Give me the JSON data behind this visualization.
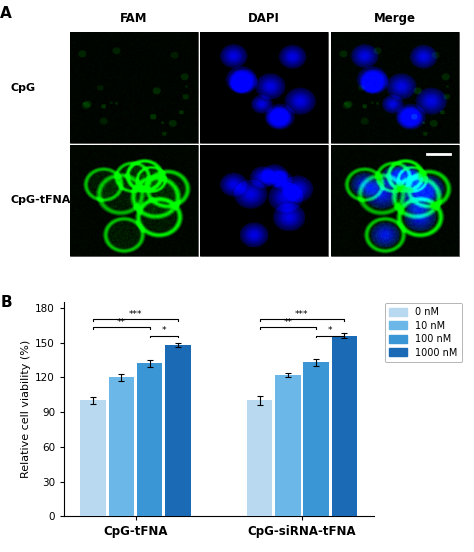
{
  "panel_A_label": "A",
  "panel_B_label": "B",
  "microscopy_rows": [
    "CpG",
    "CpG-tFNA"
  ],
  "microscopy_cols": [
    "FAM",
    "DAPI",
    "Merge"
  ],
  "bar_groups": [
    "CpG-tFNA",
    "CpG-siRNA-tFNA"
  ],
  "bar_labels": [
    "0 nM",
    "10 nM",
    "100 nM",
    "1000 nM"
  ],
  "bar_colors": [
    "#b8d9f0",
    "#6bb8e8",
    "#3a96d4",
    "#1a6ab5"
  ],
  "bar_values": [
    [
      100,
      120,
      132,
      148
    ],
    [
      100,
      122,
      133,
      156
    ]
  ],
  "bar_errors": [
    [
      3,
      3,
      3,
      2
    ],
    [
      4,
      2,
      3,
      2
    ]
  ],
  "ylabel": "Relative cell viability (%)",
  "yticks": [
    0,
    30,
    60,
    90,
    120,
    150,
    180
  ],
  "ylim": [
    0,
    185
  ],
  "background_color": "#ffffff",
  "fig_width": 4.74,
  "fig_height": 5.52
}
